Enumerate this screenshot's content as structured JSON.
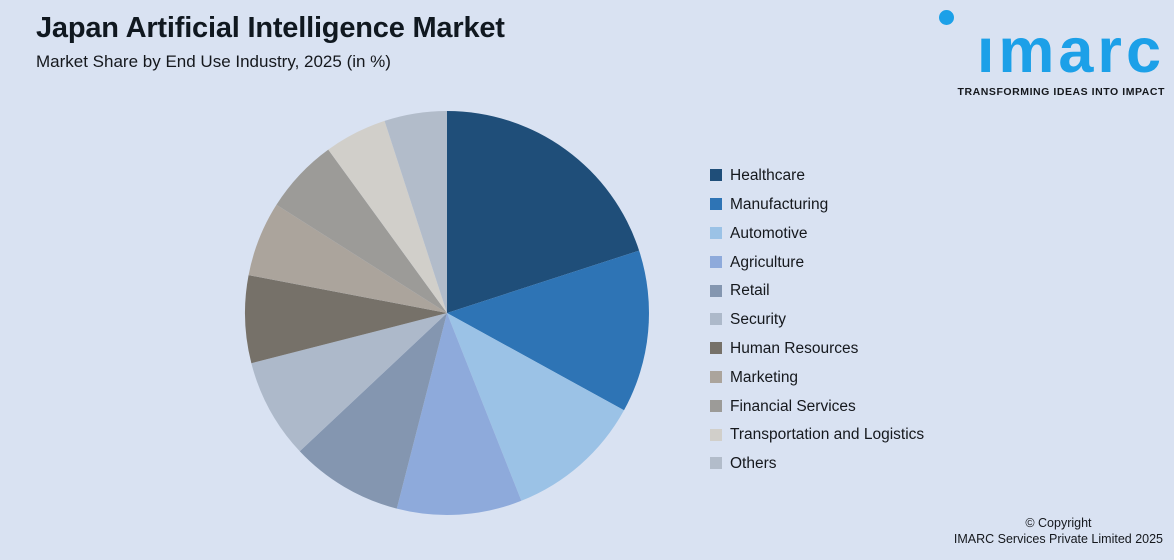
{
  "header": {
    "title": "Japan Artificial Intelligence Market",
    "subtitle": "Market Share by End Use Industry, 2025 (in %)"
  },
  "logo": {
    "wordmark": "imarc",
    "tagline": "TRANSFORMING IDEAS INTO IMPACT",
    "brand_color": "#1CA0E8"
  },
  "footer": {
    "line1": "© Copyright",
    "line2": "IMARC Services Private Limited 2025"
  },
  "colors": {
    "background": "#D9E2F2",
    "text": "#15181D",
    "title": "#101820"
  },
  "chart_data": {
    "type": "pie",
    "title": "Japan Artificial Intelligence Market",
    "subtitle": "Market Share by End Use Industry, 2025 (in %)",
    "unit": "%",
    "start_angle_deg": 0,
    "direction": "clockwise",
    "legend_position": "right",
    "note": "No data labels shown on chart; values estimated from slice arc angles",
    "categories": [
      "Healthcare",
      "Manufacturing",
      "Automotive",
      "Agriculture",
      "Retail",
      "Security",
      "Human Resources",
      "Marketing",
      "Financial Services",
      "Transportation and Logistics",
      "Others"
    ],
    "values": [
      20,
      13,
      11,
      10,
      9,
      8,
      7,
      6,
      6,
      5,
      5
    ],
    "colors": [
      "#1F4E79",
      "#2E74B5",
      "#9BC2E6",
      "#8EAADB",
      "#8496B0",
      "#ADB9CA",
      "#767169",
      "#ABA49C",
      "#9C9B98",
      "#D1CFCA",
      "#B2BCCA"
    ]
  }
}
